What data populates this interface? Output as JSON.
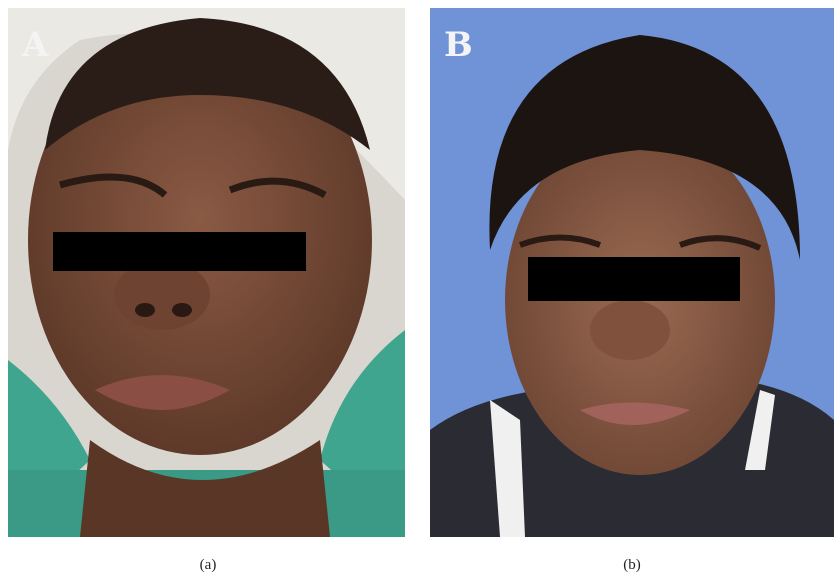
{
  "panels": [
    {
      "letter": "A",
      "caption": "(a)"
    },
    {
      "letter": "B",
      "caption": "(b)"
    }
  ]
}
